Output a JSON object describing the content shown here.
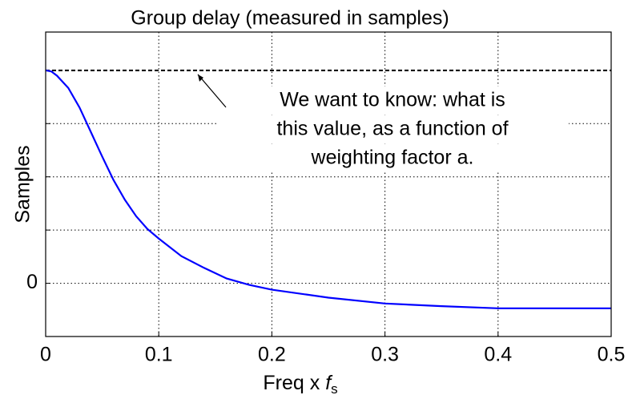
{
  "chart_data": {
    "type": "line",
    "title": "Group delay (measured in samples)",
    "xlabel": {
      "text": "Freq x",
      "var": "f",
      "sub": "s"
    },
    "ylabel": "Samples",
    "x": [
      0,
      0.005,
      0.01,
      0.02,
      0.03,
      0.04,
      0.05,
      0.06,
      0.07,
      0.08,
      0.09,
      0.1,
      0.12,
      0.14,
      0.16,
      0.18,
      0.2,
      0.25,
      0.3,
      0.35,
      0.4,
      0.45,
      0.5
    ],
    "series": [
      {
        "name": "Group delay",
        "color": "#0000ff",
        "values": [
          4,
          3.98,
          3.9,
          3.67,
          3.3,
          2.84,
          2.38,
          1.94,
          1.57,
          1.26,
          1.02,
          0.84,
          0.51,
          0.29,
          0.09,
          -0.03,
          -0.12,
          -0.27,
          -0.38,
          -0.43,
          -0.47,
          -0.47,
          -0.47
        ]
      }
    ],
    "xlim": [
      0,
      0.5
    ],
    "xticks": [
      0,
      0.1,
      0.2,
      0.3,
      0.4,
      0.5
    ],
    "ylim": [
      -1,
      4.72
    ],
    "yticks": [
      0
    ],
    "y_unlabeled_ticks": [
      1,
      2,
      3
    ],
    "grid": true,
    "reference": {
      "value": 4,
      "color": "#000000",
      "annotation": [
        "We want to know: what is",
        "this value, as a function of",
        "weighting factor a."
      ]
    }
  }
}
